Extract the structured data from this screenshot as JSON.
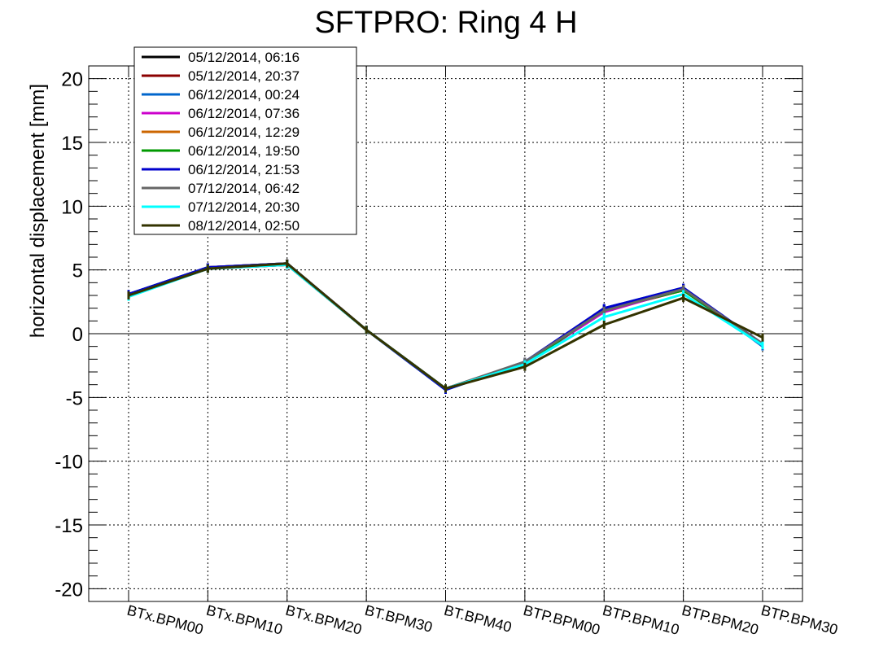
{
  "chart_data": {
    "type": "line",
    "title": "SFTPRO: Ring 4 H",
    "xlabel": "",
    "ylabel": "horizontal displacement [mm]",
    "ylim": [
      -21,
      21
    ],
    "yticks": [
      "20",
      "15",
      "10",
      "5",
      "0",
      "-5",
      "-10",
      "-15",
      "-20"
    ],
    "ytick_values": [
      20,
      15,
      10,
      5,
      0,
      -5,
      -10,
      -15,
      -20
    ],
    "categories": [
      "BTx.BPM00",
      "BTx.BPM10",
      "BTx.BPM20",
      "BT.BPM30",
      "BT.BPM40",
      "BTP.BPM00",
      "BTP.BPM10",
      "BTP.BPM20",
      "BTP.BPM30"
    ],
    "grid": true,
    "legend_position": "top-left",
    "series": [
      {
        "name": "05/12/2014, 06:16",
        "color": "#000000",
        "values": [
          3.1,
          5.2,
          5.5,
          0.3,
          -4.3,
          -2.3,
          1.9,
          3.5,
          -0.8
        ]
      },
      {
        "name": "05/12/2014, 20:37",
        "color": "#8b0000",
        "values": [
          3.0,
          5.1,
          5.4,
          0.3,
          -4.3,
          -2.4,
          1.8,
          3.4,
          -0.9
        ]
      },
      {
        "name": "06/12/2014, 00:24",
        "color": "#0066cc",
        "values": [
          3.1,
          5.2,
          5.5,
          0.3,
          -4.4,
          -2.3,
          2.0,
          3.6,
          -1.0
        ]
      },
      {
        "name": "06/12/2014, 07:36",
        "color": "#cc00cc",
        "values": [
          3.0,
          5.1,
          5.4,
          0.3,
          -4.3,
          -2.3,
          1.7,
          3.5,
          -0.9
        ]
      },
      {
        "name": "06/12/2014, 12:29",
        "color": "#cc6600",
        "values": [
          3.0,
          5.2,
          5.5,
          0.3,
          -4.3,
          -2.4,
          1.9,
          3.4,
          -0.8
        ]
      },
      {
        "name": "06/12/2014, 19:50",
        "color": "#009900",
        "values": [
          3.0,
          5.1,
          5.4,
          0.3,
          -4.3,
          -2.4,
          1.9,
          3.4,
          -0.8
        ]
      },
      {
        "name": "06/12/2014, 21:53",
        "color": "#0000cc",
        "values": [
          3.1,
          5.2,
          5.5,
          0.3,
          -4.4,
          -2.2,
          2.0,
          3.6,
          -0.8
        ]
      },
      {
        "name": "07/12/2014, 06:42",
        "color": "#666666",
        "values": [
          3.0,
          5.1,
          5.4,
          0.3,
          -4.3,
          -2.2,
          1.8,
          3.5,
          -0.8
        ]
      },
      {
        "name": "07/12/2014, 20:30",
        "color": "#00ffff",
        "values": [
          2.9,
          5.1,
          5.4,
          0.3,
          -4.3,
          -2.4,
          1.3,
          3.1,
          -0.9
        ]
      },
      {
        "name": "08/12/2014, 02:50",
        "color": "#333300",
        "values": [
          3.0,
          5.1,
          5.5,
          0.3,
          -4.3,
          -2.6,
          0.7,
          2.8,
          -0.3
        ]
      }
    ]
  }
}
